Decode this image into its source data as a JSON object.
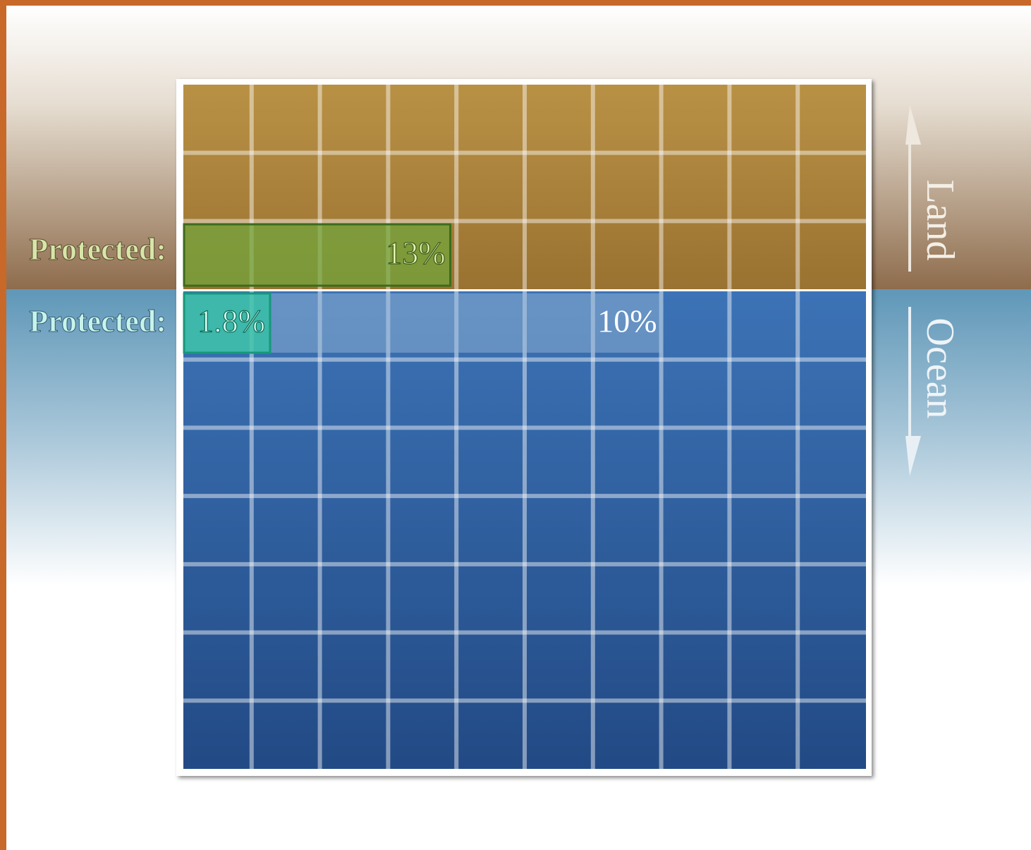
{
  "chart_data": {
    "type": "waffle",
    "series": [
      {
        "name": "Land",
        "label": "Protected:",
        "values": [
          13
        ],
        "value_labels": [
          "13%"
        ],
        "colors": [
          "#6fa83c"
        ]
      },
      {
        "name": "Ocean",
        "label": "Protected:",
        "values": [
          1.8,
          10
        ],
        "value_labels": [
          "1.8%",
          "10%"
        ],
        "colors": [
          "#2cc9a0",
          "#9bbbd6"
        ]
      }
    ]
  }
}
